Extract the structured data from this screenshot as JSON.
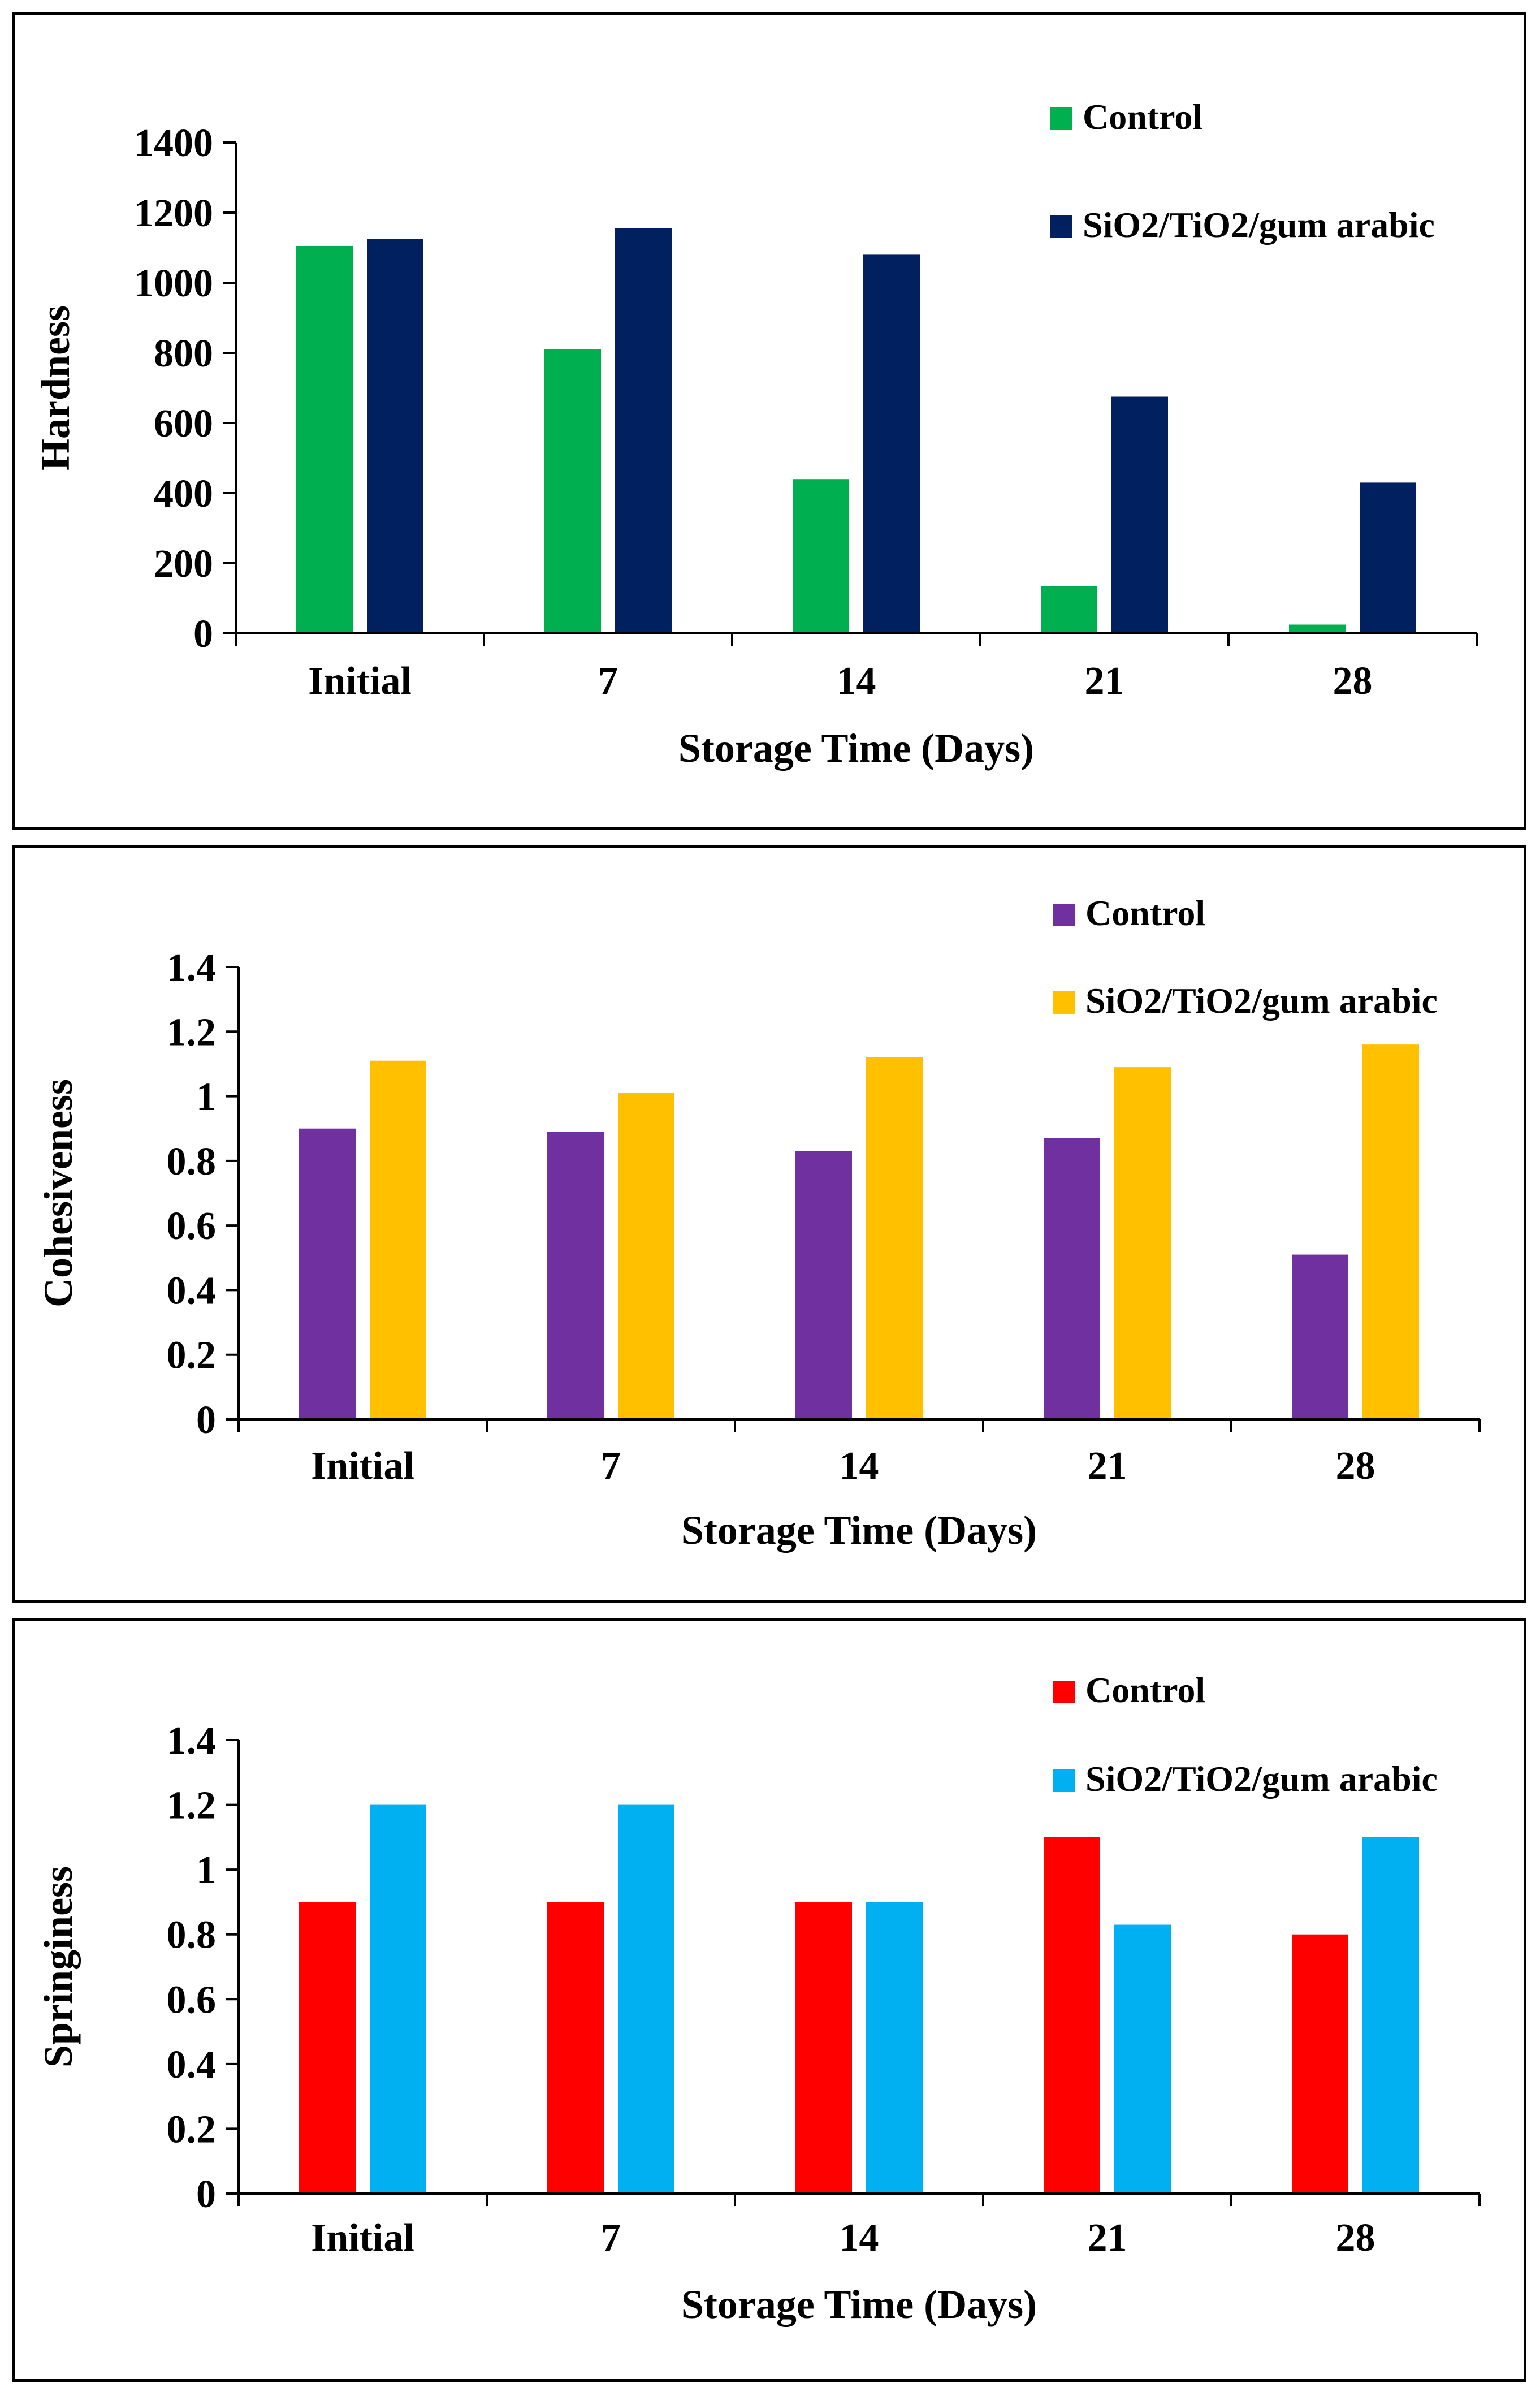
{
  "chart_data": [
    {
      "type": "bar",
      "title": "",
      "xlabel": "Storage Time  (Days)",
      "ylabel": "Hardness",
      "categories": [
        "Initial",
        "7",
        "14",
        "21",
        "28"
      ],
      "ylim": [
        0,
        1400
      ],
      "yticks": [
        "0",
        "200",
        "400",
        "600",
        "800",
        "1000",
        "1200",
        "1400"
      ],
      "yticks_values": [
        0,
        200,
        400,
        600,
        800,
        1000,
        1200,
        1400
      ],
      "series": [
        {
          "name": "Control",
          "color": "#00b050",
          "values": [
            1105,
            810,
            440,
            135,
            25
          ]
        },
        {
          "name": "SiO2/TiO2/gum arabic",
          "color": "#002060",
          "values": [
            1125,
            1155,
            1080,
            675,
            430
          ]
        }
      ],
      "legend_position": "top-right"
    },
    {
      "type": "bar",
      "title": "",
      "xlabel": "Storage Time  (Days)",
      "ylabel": "Cohesiveness",
      "categories": [
        "Initial",
        "7",
        "14",
        "21",
        "28"
      ],
      "ylim": [
        0,
        1.4
      ],
      "yticks": [
        "0",
        "0.2",
        "0.4",
        "0.6",
        "0.8",
        "1",
        "1.2",
        "1.4"
      ],
      "yticks_values": [
        0,
        0.2,
        0.4,
        0.6,
        0.8,
        1,
        1.2,
        1.4
      ],
      "series": [
        {
          "name": "Control",
          "color": "#7030a0",
          "values": [
            0.9,
            0.89,
            0.83,
            0.87,
            0.51
          ]
        },
        {
          "name": "SiO2/TiO2/gum arabic",
          "color": "#ffc000",
          "values": [
            1.11,
            1.01,
            1.12,
            1.09,
            1.16
          ]
        }
      ],
      "legend_position": "top-right"
    },
    {
      "type": "bar",
      "title": "",
      "xlabel": "Storage Time  (Days)",
      "ylabel": "Springiness",
      "categories": [
        "Initial",
        "7",
        "14",
        "21",
        "28"
      ],
      "ylim": [
        0,
        1.4
      ],
      "yticks": [
        "0",
        "0.2",
        "0.4",
        "0.6",
        "0.8",
        "1",
        "1.2",
        "1.4"
      ],
      "yticks_values": [
        0,
        0.2,
        0.4,
        0.6,
        0.8,
        1,
        1.2,
        1.4
      ],
      "series": [
        {
          "name": "Control",
          "color": "#ff0000",
          "values": [
            0.9,
            0.9,
            0.9,
            1.1,
            0.8
          ]
        },
        {
          "name": "SiO2/TiO2/gum arabic",
          "color": "#00b0f0",
          "values": [
            1.2,
            1.2,
            0.9,
            0.83,
            1.1
          ]
        }
      ],
      "legend_position": "top-right"
    }
  ]
}
